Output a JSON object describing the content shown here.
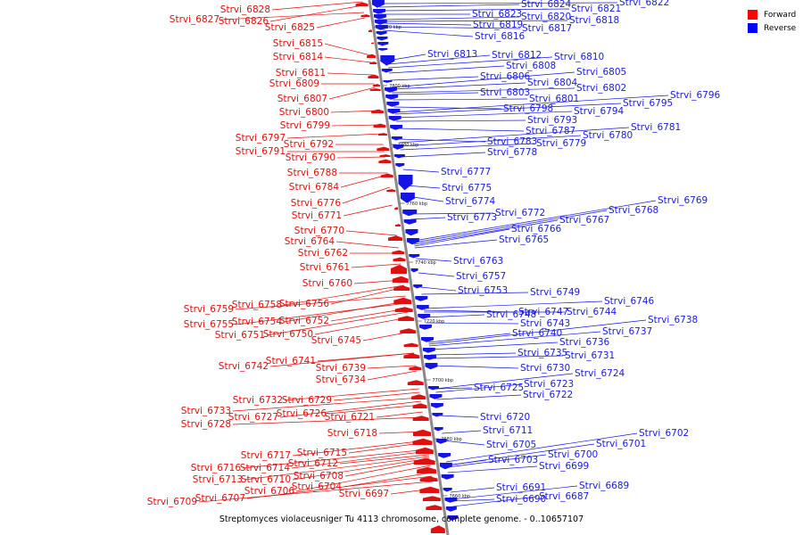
{
  "caption": "Streptomyces violaceusniger Tu 4113 chromosome, complete genome. - 0..10657107",
  "legend": [
    {
      "label": "Forward",
      "color": "#ff0000"
    },
    {
      "label": "Reverse",
      "color": "#0000ff"
    }
  ],
  "scale_labels": [
    "7820 kbp",
    "7800 kbp",
    "7780 kbp",
    "7760 kbp",
    "7740 kbp",
    "7720 kbp",
    "7700 kbp",
    "7680 kbp",
    "7660 kbp"
  ],
  "forward_genes": [
    "Strvi_6828",
    "Strvi_6827",
    "Strvi_6826",
    "Strvi_6825",
    "Strvi_6815",
    "Strvi_6814",
    "Strvi_6811",
    "Strvi_6809",
    "Strvi_6807",
    "Strvi_6800",
    "Strvi_6799",
    "Strvi_6797",
    "Strvi_6792",
    "Strvi_6791",
    "Strvi_6790",
    "Strvi_6788",
    "Strvi_6784",
    "Strvi_6776",
    "Strvi_6771",
    "Strvi_6770",
    "Strvi_6764",
    "Strvi_6762",
    "Strvi_6761",
    "Strvi_6760",
    "Strvi_6758",
    "Strvi_6756",
    "Strvi_6759",
    "Strvi_6755",
    "Strvi_6754",
    "Strvi_6752",
    "Strvi_6751",
    "Strvi_6750",
    "Strvi_6745",
    "Strvi_6742",
    "Strvi_6741",
    "Strvi_6739",
    "Strvi_6734",
    "Strvi_6732",
    "Strvi_6729",
    "Strvi_6733",
    "Strvi_6727",
    "Strvi_6726",
    "Strvi_6721",
    "Strvi_6728",
    "Strvi_6718",
    "Strvi_6717",
    "Strvi_6715",
    "Strvi_6716",
    "Strvi_6714",
    "Strvi_6712",
    "Strvi_6713",
    "Strvi_6710",
    "Strvi_6708",
    "Strvi_6706",
    "Strvi_6704",
    "Strvi_6707",
    "Strvi_6697",
    "Strvi_6709"
  ],
  "reverse_genes": [
    "Strvi_6822",
    "Strvi_6824",
    "Strvi_6821",
    "Strvi_6823",
    "Strvi_6820",
    "Strvi_6818",
    "Strvi_6819",
    "Strvi_6817",
    "Strvi_6816",
    "Strvi_6813",
    "Strvi_6812",
    "Strvi_6810",
    "Strvi_6808",
    "Strvi_6806",
    "Strvi_6805",
    "Strvi_6804",
    "Strvi_6802",
    "Strvi_6803",
    "Strvi_6801",
    "Strvi_6796",
    "Strvi_6795",
    "Strvi_6798",
    "Strvi_6794",
    "Strvi_6793",
    "Strvi_6787",
    "Strvi_6781",
    "Strvi_6780",
    "Strvi_6783",
    "Strvi_6779",
    "Strvi_6778",
    "Strvi_6777",
    "Strvi_6775",
    "Strvi_6774",
    "Strvi_6769",
    "Strvi_6772",
    "Strvi_6768",
    "Strvi_6773",
    "Strvi_6767",
    "Strvi_6766",
    "Strvi_6765",
    "Strvi_6763",
    "Strvi_6757",
    "Strvi_6753",
    "Strvi_6749",
    "Strvi_6746",
    "Strvi_6747",
    "Strvi_6744",
    "Strvi_6748",
    "Strvi_6743",
    "Strvi_6738",
    "Strvi_6737",
    "Strvi_6740",
    "Strvi_6736",
    "Strvi_6735",
    "Strvi_6731",
    "Strvi_6730",
    "Strvi_6724",
    "Strvi_6723",
    "Strvi_6725",
    "Strvi_6722",
    "Strvi_6720",
    "Strvi_6711",
    "Strvi_6705",
    "Strvi_6702",
    "Strvi_6701",
    "Strvi_6700",
    "Strvi_6703",
    "Strvi_6699",
    "Strvi_6691",
    "Strvi_6689",
    "Strvi_6690",
    "Strvi_6687"
  ]
}
